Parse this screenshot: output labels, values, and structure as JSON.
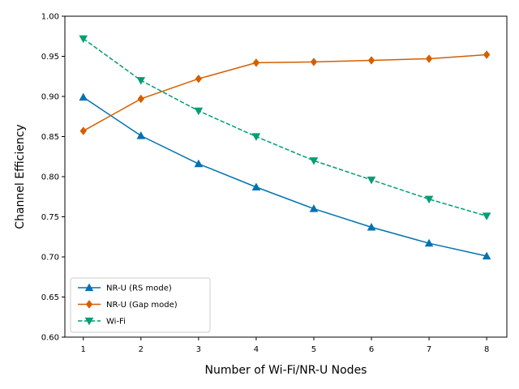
{
  "chart_data": {
    "type": "line",
    "title": "",
    "xlabel": "Number of Wi-Fi/NR-U Nodes",
    "ylabel": "Channel Efficiency",
    "xlim": [
      0.68,
      8.35
    ],
    "ylim": [
      0.6,
      1.0
    ],
    "x": [
      1,
      2,
      3,
      4,
      5,
      6,
      7,
      8
    ],
    "xticks": [
      "1",
      "2",
      "3",
      "4",
      "5",
      "6",
      "7",
      "8"
    ],
    "yticks": [
      0.6,
      0.65,
      0.7,
      0.75,
      0.8,
      0.85,
      0.9,
      0.95,
      1.0
    ],
    "ytick_labels": [
      "0.60",
      "0.65",
      "0.70",
      "0.75",
      "0.80",
      "0.85",
      "0.90",
      "0.95",
      "1.00"
    ],
    "grid": false,
    "legend_position": "lower-left",
    "series": [
      {
        "name": "NR-U (RS mode)",
        "color": "#0072b2",
        "marker": "triangle-up",
        "linestyle": "solid",
        "values": [
          0.899,
          0.851,
          0.816,
          0.787,
          0.76,
          0.737,
          0.717,
          0.701
        ]
      },
      {
        "name": "NR-U (Gap mode)",
        "color": "#d55e00",
        "marker": "diamond",
        "linestyle": "solid",
        "values": [
          0.857,
          0.897,
          0.922,
          0.942,
          0.943,
          0.945,
          0.947,
          0.952
        ]
      },
      {
        "name": "Wi-Fi",
        "color": "#009e73",
        "marker": "triangle-down",
        "linestyle": "dashed",
        "values": [
          0.972,
          0.92,
          0.882,
          0.85,
          0.82,
          0.796,
          0.772,
          0.751
        ]
      }
    ]
  }
}
